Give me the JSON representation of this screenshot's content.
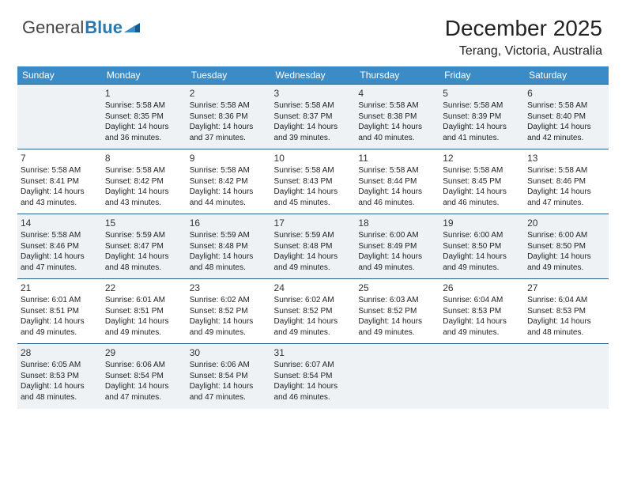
{
  "logo": {
    "text1": "General",
    "text2": "Blue"
  },
  "title": "December 2025",
  "location": "Terang, Victoria, Australia",
  "colors": {
    "header_bg": "#3b8bc7",
    "header_text": "#ffffff",
    "row_border": "#2a5f8a",
    "stripe_bg": "#eef2f5",
    "text": "#222222",
    "logo_blue": "#2a7ab0"
  },
  "typography": {
    "title_fontsize": 28,
    "location_fontsize": 16,
    "dayhead_fontsize": 12,
    "cell_fontsize": 10,
    "daynum_fontsize": 12
  },
  "calendar": {
    "type": "table",
    "day_headers": [
      "Sunday",
      "Monday",
      "Tuesday",
      "Wednesday",
      "Thursday",
      "Friday",
      "Saturday"
    ],
    "weeks": [
      [
        null,
        {
          "n": "1",
          "sr": "5:58 AM",
          "ss": "8:35 PM",
          "dl": "14 hours and 36 minutes."
        },
        {
          "n": "2",
          "sr": "5:58 AM",
          "ss": "8:36 PM",
          "dl": "14 hours and 37 minutes."
        },
        {
          "n": "3",
          "sr": "5:58 AM",
          "ss": "8:37 PM",
          "dl": "14 hours and 39 minutes."
        },
        {
          "n": "4",
          "sr": "5:58 AM",
          "ss": "8:38 PM",
          "dl": "14 hours and 40 minutes."
        },
        {
          "n": "5",
          "sr": "5:58 AM",
          "ss": "8:39 PM",
          "dl": "14 hours and 41 minutes."
        },
        {
          "n": "6",
          "sr": "5:58 AM",
          "ss": "8:40 PM",
          "dl": "14 hours and 42 minutes."
        }
      ],
      [
        {
          "n": "7",
          "sr": "5:58 AM",
          "ss": "8:41 PM",
          "dl": "14 hours and 43 minutes."
        },
        {
          "n": "8",
          "sr": "5:58 AM",
          "ss": "8:42 PM",
          "dl": "14 hours and 43 minutes."
        },
        {
          "n": "9",
          "sr": "5:58 AM",
          "ss": "8:42 PM",
          "dl": "14 hours and 44 minutes."
        },
        {
          "n": "10",
          "sr": "5:58 AM",
          "ss": "8:43 PM",
          "dl": "14 hours and 45 minutes."
        },
        {
          "n": "11",
          "sr": "5:58 AM",
          "ss": "8:44 PM",
          "dl": "14 hours and 46 minutes."
        },
        {
          "n": "12",
          "sr": "5:58 AM",
          "ss": "8:45 PM",
          "dl": "14 hours and 46 minutes."
        },
        {
          "n": "13",
          "sr": "5:58 AM",
          "ss": "8:46 PM",
          "dl": "14 hours and 47 minutes."
        }
      ],
      [
        {
          "n": "14",
          "sr": "5:58 AM",
          "ss": "8:46 PM",
          "dl": "14 hours and 47 minutes."
        },
        {
          "n": "15",
          "sr": "5:59 AM",
          "ss": "8:47 PM",
          "dl": "14 hours and 48 minutes."
        },
        {
          "n": "16",
          "sr": "5:59 AM",
          "ss": "8:48 PM",
          "dl": "14 hours and 48 minutes."
        },
        {
          "n": "17",
          "sr": "5:59 AM",
          "ss": "8:48 PM",
          "dl": "14 hours and 49 minutes."
        },
        {
          "n": "18",
          "sr": "6:00 AM",
          "ss": "8:49 PM",
          "dl": "14 hours and 49 minutes."
        },
        {
          "n": "19",
          "sr": "6:00 AM",
          "ss": "8:50 PM",
          "dl": "14 hours and 49 minutes."
        },
        {
          "n": "20",
          "sr": "6:00 AM",
          "ss": "8:50 PM",
          "dl": "14 hours and 49 minutes."
        }
      ],
      [
        {
          "n": "21",
          "sr": "6:01 AM",
          "ss": "8:51 PM",
          "dl": "14 hours and 49 minutes."
        },
        {
          "n": "22",
          "sr": "6:01 AM",
          "ss": "8:51 PM",
          "dl": "14 hours and 49 minutes."
        },
        {
          "n": "23",
          "sr": "6:02 AM",
          "ss": "8:52 PM",
          "dl": "14 hours and 49 minutes."
        },
        {
          "n": "24",
          "sr": "6:02 AM",
          "ss": "8:52 PM",
          "dl": "14 hours and 49 minutes."
        },
        {
          "n": "25",
          "sr": "6:03 AM",
          "ss": "8:52 PM",
          "dl": "14 hours and 49 minutes."
        },
        {
          "n": "26",
          "sr": "6:04 AM",
          "ss": "8:53 PM",
          "dl": "14 hours and 49 minutes."
        },
        {
          "n": "27",
          "sr": "6:04 AM",
          "ss": "8:53 PM",
          "dl": "14 hours and 48 minutes."
        }
      ],
      [
        {
          "n": "28",
          "sr": "6:05 AM",
          "ss": "8:53 PM",
          "dl": "14 hours and 48 minutes."
        },
        {
          "n": "29",
          "sr": "6:06 AM",
          "ss": "8:54 PM",
          "dl": "14 hours and 47 minutes."
        },
        {
          "n": "30",
          "sr": "6:06 AM",
          "ss": "8:54 PM",
          "dl": "14 hours and 47 minutes."
        },
        {
          "n": "31",
          "sr": "6:07 AM",
          "ss": "8:54 PM",
          "dl": "14 hours and 46 minutes."
        },
        null,
        null,
        null
      ]
    ]
  },
  "labels": {
    "sunrise": "Sunrise:",
    "sunset": "Sunset:",
    "daylight": "Daylight:"
  }
}
